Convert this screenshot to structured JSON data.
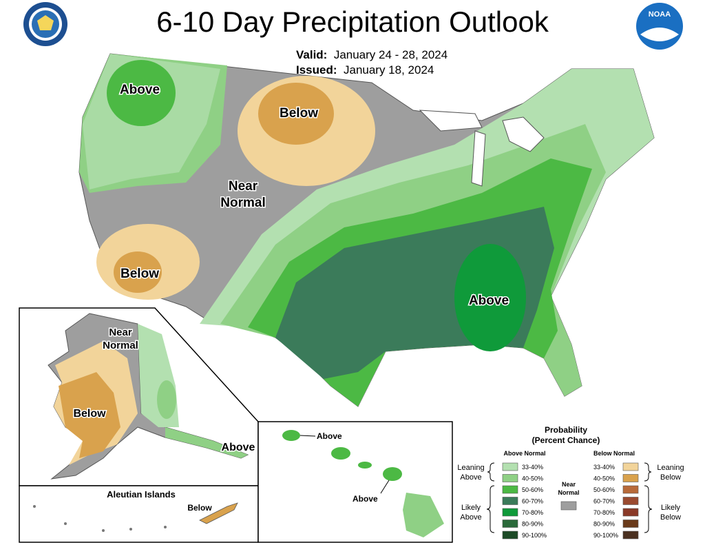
{
  "title": "6-10 Day Precipitation Outlook",
  "valid_label": "Valid:",
  "valid_value": "January 24 - 28, 2024",
  "issued_label": "Issued:",
  "issued_value": "January 18, 2024",
  "logos": {
    "left": "dept-of-commerce-seal",
    "right": "noaa-logo",
    "right_text": "NOAA"
  },
  "map_labels": {
    "conus_above_nw": "Above",
    "conus_below_north": "Below",
    "conus_near_normal_1": "Near",
    "conus_near_normal_2": "Normal",
    "conus_below_sw": "Below",
    "conus_above_se": "Above",
    "ak_near_1": "Near",
    "ak_near_2": "Normal",
    "ak_below": "Below",
    "ak_above": "Above",
    "aleutian_title": "Aleutian Islands",
    "aleutian_below": "Below",
    "hi_above_1": "Above",
    "hi_above_2": "Above"
  },
  "legend": {
    "title_1": "Probability",
    "title_2": "(Percent Chance)",
    "above_header": "Above Normal",
    "below_header": "Below Normal",
    "leaning_above_1": "Leaning",
    "leaning_above_2": "Above",
    "likely_above_1": "Likely",
    "likely_above_2": "Above",
    "near_1": "Near",
    "near_2": "Normal",
    "leaning_below_1": "Leaning",
    "leaning_below_2": "Below",
    "likely_below_1": "Likely",
    "likely_below_2": "Below",
    "above": [
      {
        "label": "33-40%",
        "color": "#b3e0b0"
      },
      {
        "label": "40-50%",
        "color": "#8fd085"
      },
      {
        "label": "50-60%",
        "color": "#4cb944"
      },
      {
        "label": "60-70%",
        "color": "#3b7b5a"
      },
      {
        "label": "70-80%",
        "color": "#0f9a3a"
      },
      {
        "label": "80-90%",
        "color": "#2a6a3a"
      },
      {
        "label": "90-100%",
        "color": "#1c4a26"
      }
    ],
    "below": [
      {
        "label": "33-40%",
        "color": "#f2d49a"
      },
      {
        "label": "40-50%",
        "color": "#d9a24d"
      },
      {
        "label": "50-60%",
        "color": "#b86a3a"
      },
      {
        "label": "60-70%",
        "color": "#9a4a30"
      },
      {
        "label": "70-80%",
        "color": "#8a3a28"
      },
      {
        "label": "80-90%",
        "color": "#6a3a1a"
      },
      {
        "label": "90-100%",
        "color": "#4a3020"
      }
    ],
    "near_color": "#9e9e9e"
  }
}
